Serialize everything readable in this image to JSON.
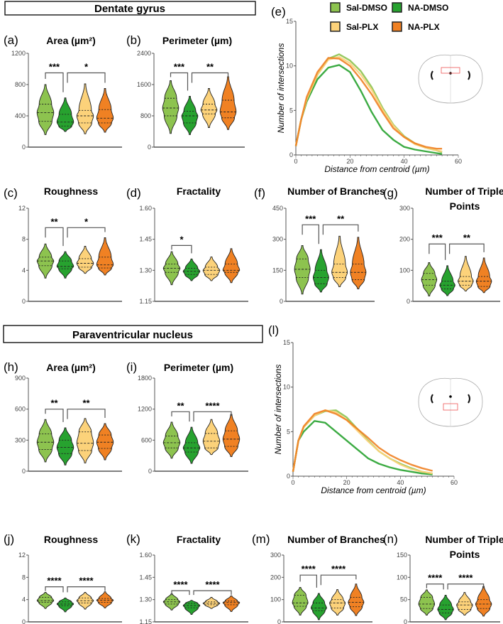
{
  "headers": {
    "dentate": "Dentate gyrus",
    "pvn": "Paraventricular nucleus"
  },
  "legend": [
    {
      "name": "Sal-DMSO",
      "color": "#8dc34f"
    },
    {
      "name": "NA-DMSO",
      "color": "#27a22f"
    },
    {
      "name": "Sal-PLX",
      "color": "#fcd27a"
    },
    {
      "name": "NA-PLX",
      "color": "#f08123"
    }
  ],
  "chart_data": [
    {
      "type": "violin",
      "label": "(a)",
      "title": "Area (µm²)",
      "ylim": [
        0,
        1200
      ],
      "yticks": [
        0,
        400,
        800,
        1200
      ],
      "groups": [
        [
          160,
          330,
          440,
          550,
          800
        ],
        [
          200,
          270,
          320,
          420,
          630
        ],
        [
          170,
          310,
          400,
          470,
          810
        ],
        [
          190,
          310,
          370,
          480,
          750
        ]
      ],
      "stats": "min,q1,median,q3,max",
      "sig": [
        {
          "from": 0,
          "to": 1,
          "y": 950,
          "text": "***"
        },
        {
          "from": 1,
          "to": 3,
          "y": 950,
          "text": "*"
        }
      ]
    },
    {
      "type": "violin",
      "label": "(b)",
      "title": "Perimeter (µm)",
      "ylim": [
        0,
        2400
      ],
      "yticks": [
        0,
        800,
        1600,
        2400
      ],
      "groups": [
        [
          350,
          800,
          1000,
          1250,
          1700
        ],
        [
          320,
          620,
          800,
          920,
          1300
        ],
        [
          500,
          850,
          950,
          1100,
          1500
        ],
        [
          450,
          750,
          900,
          1200,
          1800
        ]
      ],
      "sig": [
        {
          "from": 0,
          "to": 1,
          "y": 1900,
          "text": "***"
        },
        {
          "from": 1,
          "to": 3,
          "y": 1900,
          "text": "**"
        }
      ]
    },
    {
      "type": "violin",
      "label": "(c)",
      "title": "Roughness",
      "ylim": [
        0,
        12
      ],
      "yticks": [
        0,
        4,
        8,
        12
      ],
      "groups": [
        [
          3,
          4.6,
          5.2,
          5.7,
          7.4
        ],
        [
          3,
          4.2,
          4.5,
          5.2,
          6.4
        ],
        [
          3.6,
          4.4,
          4.9,
          5.5,
          7.1
        ],
        [
          3.4,
          4.3,
          4.7,
          5.7,
          8.2
        ]
      ],
      "sig": [
        {
          "from": 0,
          "to": 1,
          "y": 9.5,
          "text": "**"
        },
        {
          "from": 1,
          "to": 3,
          "y": 9.5,
          "text": "*"
        }
      ]
    },
    {
      "type": "violin",
      "label": "(d)",
      "title": "Fractality",
      "ylim": [
        1.15,
        1.6
      ],
      "yticks": [
        "1.15",
        "1.30",
        "1.45",
        "1.60"
      ],
      "groups": [
        [
          1.23,
          1.29,
          1.31,
          1.33,
          1.39
        ],
        [
          1.25,
          1.28,
          1.295,
          1.31,
          1.355
        ],
        [
          1.25,
          1.28,
          1.3,
          1.315,
          1.365
        ],
        [
          1.24,
          1.29,
          1.3,
          1.33,
          1.405
        ]
      ],
      "sig": [
        {
          "from": 0,
          "to": 1,
          "y": 1.42,
          "text": "*"
        }
      ]
    },
    {
      "type": "violin",
      "label": "(f)",
      "title": "Number of Branches",
      "ylim": [
        0,
        450
      ],
      "yticks": [
        0,
        150,
        300,
        450
      ],
      "groups": [
        [
          35,
          115,
          155,
          205,
          270
        ],
        [
          45,
          85,
          115,
          150,
          250
        ],
        [
          70,
          115,
          140,
          180,
          315
        ],
        [
          60,
          105,
          140,
          180,
          310
        ]
      ],
      "sig": [
        {
          "from": 0,
          "to": 1,
          "y": 370,
          "text": "***"
        },
        {
          "from": 1,
          "to": 3,
          "y": 370,
          "text": "**"
        }
      ]
    },
    {
      "type": "violin",
      "label": "(g)",
      "title": "Number of Triple",
      "title2": "Points",
      "ylim": [
        0,
        300
      ],
      "yticks": [
        0,
        100,
        200,
        300
      ],
      "groups": [
        [
          17,
          52,
          70,
          90,
          125
        ],
        [
          18,
          40,
          52,
          65,
          115
        ],
        [
          33,
          52,
          65,
          80,
          145
        ],
        [
          28,
          48,
          65,
          80,
          140
        ]
      ],
      "sig": [
        {
          "from": 0,
          "to": 1,
          "y": 185,
          "text": "***"
        },
        {
          "from": 1,
          "to": 3,
          "y": 185,
          "text": "**"
        }
      ]
    },
    {
      "type": "violin",
      "label": "(h)",
      "title": "Area (µm²)",
      "ylim": [
        0,
        900
      ],
      "yticks": [
        0,
        300,
        600,
        900
      ],
      "groups": [
        [
          90,
          210,
          280,
          360,
          500
        ],
        [
          60,
          170,
          230,
          300,
          420
        ],
        [
          80,
          200,
          270,
          380,
          510
        ],
        [
          110,
          220,
          280,
          350,
          460
        ]
      ],
      "sig": [
        {
          "from": 0,
          "to": 1,
          "y": 600,
          "text": "**"
        },
        {
          "from": 1,
          "to": 3,
          "y": 600,
          "text": "**"
        }
      ]
    },
    {
      "type": "violin",
      "label": "(i)",
      "title": "Perimeter (µm)",
      "ylim": [
        0,
        1800
      ],
      "yticks": [
        0,
        600,
        1200,
        1800
      ],
      "groups": [
        [
          250,
          450,
          550,
          680,
          950
        ],
        [
          150,
          370,
          450,
          550,
          850
        ],
        [
          320,
          450,
          580,
          730,
          1000
        ],
        [
          280,
          480,
          620,
          780,
          1100
        ]
      ],
      "sig": [
        {
          "from": 0,
          "to": 1,
          "y": 1150,
          "text": "**"
        },
        {
          "from": 1,
          "to": 3,
          "y": 1150,
          "text": "****"
        }
      ]
    },
    {
      "type": "violin",
      "label": "(j)",
      "title": "Roughness",
      "ylim": [
        0,
        12
      ],
      "yticks": [
        0,
        4,
        8,
        12
      ],
      "groups": [
        [
          2.4,
          3.5,
          3.8,
          4.4,
          5.3
        ],
        [
          1.8,
          2.9,
          3.2,
          3.6,
          4.3
        ],
        [
          2.3,
          3.4,
          3.8,
          4.3,
          5.3
        ],
        [
          2.5,
          3.5,
          3.9,
          4.2,
          5.4
        ]
      ],
      "sig": [
        {
          "from": 0,
          "to": 1,
          "y": 6.3,
          "text": "****"
        },
        {
          "from": 1,
          "to": 3,
          "y": 6.3,
          "text": "****"
        }
      ]
    },
    {
      "type": "violin",
      "label": "(k)",
      "title": "Fractality",
      "ylim": [
        1.15,
        1.6
      ],
      "yticks": [
        "1.15",
        "1.30",
        "1.45",
        "1.60"
      ],
      "groups": [
        [
          1.23,
          1.27,
          1.285,
          1.3,
          1.34
        ],
        [
          1.2,
          1.245,
          1.26,
          1.275,
          1.295
        ],
        [
          1.24,
          1.265,
          1.275,
          1.285,
          1.315
        ],
        [
          1.22,
          1.265,
          1.28,
          1.29,
          1.325
        ]
      ],
      "sig": [
        {
          "from": 0,
          "to": 1,
          "y": 1.36,
          "text": "****"
        },
        {
          "from": 1,
          "to": 3,
          "y": 1.36,
          "text": "****"
        }
      ]
    },
    {
      "type": "violin",
      "label": "(m)",
      "title": "Number of Branches",
      "ylim": [
        0,
        300
      ],
      "yticks": [
        0,
        100,
        200,
        300
      ],
      "groups": [
        [
          30,
          70,
          85,
          120,
          155
        ],
        [
          10,
          50,
          62,
          85,
          128
        ],
        [
          30,
          62,
          85,
          100,
          145
        ],
        [
          28,
          68,
          88,
          110,
          170
        ]
      ],
      "sig": [
        {
          "from": 0,
          "to": 1,
          "y": 210,
          "text": "****"
        },
        {
          "from": 1,
          "to": 3,
          "y": 210,
          "text": "****"
        }
      ]
    },
    {
      "type": "violin",
      "label": "(n)",
      "title": "Number of Triple",
      "title2": "Points",
      "ylim": [
        0,
        150
      ],
      "yticks": [
        0,
        50,
        100,
        150
      ],
      "groups": [
        [
          15,
          30,
          40,
          55,
          72
        ],
        [
          5,
          20,
          28,
          38,
          60
        ],
        [
          15,
          28,
          38,
          45,
          66
        ],
        [
          13,
          30,
          40,
          50,
          80
        ]
      ],
      "sig": [
        {
          "from": 0,
          "to": 1,
          "y": 85,
          "text": "****"
        },
        {
          "from": 1,
          "to": 3,
          "y": 85,
          "text": "****"
        }
      ]
    },
    {
      "type": "line",
      "label": "(e)",
      "xlabel": "Distance from centroid (µm)",
      "ylabel": "Number of intersections",
      "xlim": [
        0,
        60
      ],
      "ylim": [
        0,
        15
      ],
      "xticks": [
        0,
        20,
        40,
        60
      ],
      "yticks": [
        0,
        5,
        10,
        15
      ],
      "x": [
        0,
        2,
        4,
        8,
        12,
        16,
        20,
        24,
        28,
        32,
        36,
        40,
        44,
        48,
        52,
        54
      ],
      "series": [
        {
          "name": "Sal-DMSO",
          "values": [
            1,
            4,
            6,
            9,
            10.8,
            11.3,
            10.6,
            9.4,
            7.6,
            5.3,
            3.4,
            2.1,
            1.3,
            0.8,
            0.5,
            0.3
          ]
        },
        {
          "name": "NA-DMSO",
          "values": [
            1,
            4,
            6,
            8.5,
            9.8,
            10.1,
            9.3,
            7.2,
            4.8,
            2.8,
            1.7,
            0.9,
            0.6,
            0.4,
            0.2,
            0.1
          ]
        },
        {
          "name": "Sal-PLX",
          "values": [
            1,
            4,
            6.2,
            9,
            10.7,
            11,
            10.3,
            9,
            7.3,
            5.1,
            3.3,
            2,
            1.2,
            0.8,
            0.5,
            0.4
          ]
        },
        {
          "name": "NA-PLX",
          "values": [
            1,
            4,
            6.5,
            9.3,
            10.9,
            10.8,
            10,
            8.5,
            6.8,
            4.8,
            3,
            2,
            1.3,
            0.9,
            0.7,
            0.7
          ]
        }
      ]
    },
    {
      "type": "line",
      "label": "(l)",
      "xlabel": "Distance from centroid (µm)",
      "ylabel": "Number of intersections",
      "xlim": [
        0,
        60
      ],
      "ylim": [
        0,
        15
      ],
      "xticks": [
        0,
        20,
        40,
        60
      ],
      "yticks": [
        0,
        5,
        10,
        15
      ],
      "x": [
        0,
        2,
        4,
        8,
        12,
        16,
        20,
        24,
        28,
        32,
        36,
        40,
        44,
        48,
        52
      ],
      "series": [
        {
          "name": "Sal-DMSO",
          "values": [
            0.5,
            4,
            5.5,
            6.8,
            7.3,
            7.4,
            6.6,
            5.3,
            4,
            2.8,
            2,
            1.4,
            0.9,
            0.5,
            0.3
          ]
        },
        {
          "name": "NA-DMSO",
          "values": [
            0.5,
            4,
            5,
            6.2,
            6,
            5,
            4,
            3,
            2,
            1.4,
            1,
            0.7,
            0.5,
            0.3,
            0.2
          ]
        },
        {
          "name": "Sal-PLX",
          "values": [
            0.5,
            4,
            5.5,
            6.8,
            7.4,
            7.2,
            6.3,
            5.1,
            3.9,
            2.8,
            2,
            1.3,
            0.8,
            0.5,
            0.3
          ]
        },
        {
          "name": "NA-PLX",
          "values": [
            0.5,
            4,
            5.6,
            7,
            7.4,
            7,
            6.3,
            5.3,
            4.3,
            3.2,
            2.4,
            1.8,
            1.3,
            0.9,
            0.6
          ]
        }
      ]
    }
  ]
}
